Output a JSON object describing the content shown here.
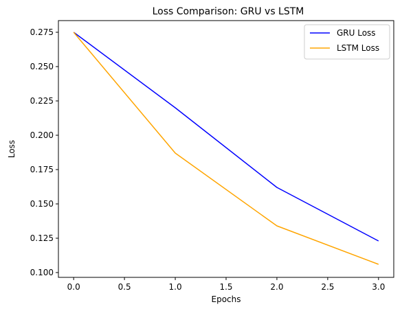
{
  "chart_data": {
    "type": "line",
    "title": "Loss Comparison: GRU vs LSTM",
    "xlabel": "Epochs",
    "ylabel": "Loss",
    "x": [
      0,
      1,
      2,
      3
    ],
    "xlim": [
      -0.15,
      3.15
    ],
    "ylim": [
      0.0965,
      0.2835
    ],
    "xticks": [
      "0.0",
      "0.5",
      "1.0",
      "1.5",
      "2.0",
      "2.5",
      "3.0"
    ],
    "yticks": [
      "0.100",
      "0.125",
      "0.150",
      "0.175",
      "0.200",
      "0.225",
      "0.250",
      "0.275"
    ],
    "grid": false,
    "legend_position": "top-right",
    "series": [
      {
        "name": "GRU Loss",
        "color": "#0000ff",
        "values": [
          0.275,
          0.22,
          0.162,
          0.123
        ]
      },
      {
        "name": "LSTM Loss",
        "color": "#ffa500",
        "values": [
          0.275,
          0.187,
          0.134,
          0.106
        ]
      }
    ]
  }
}
